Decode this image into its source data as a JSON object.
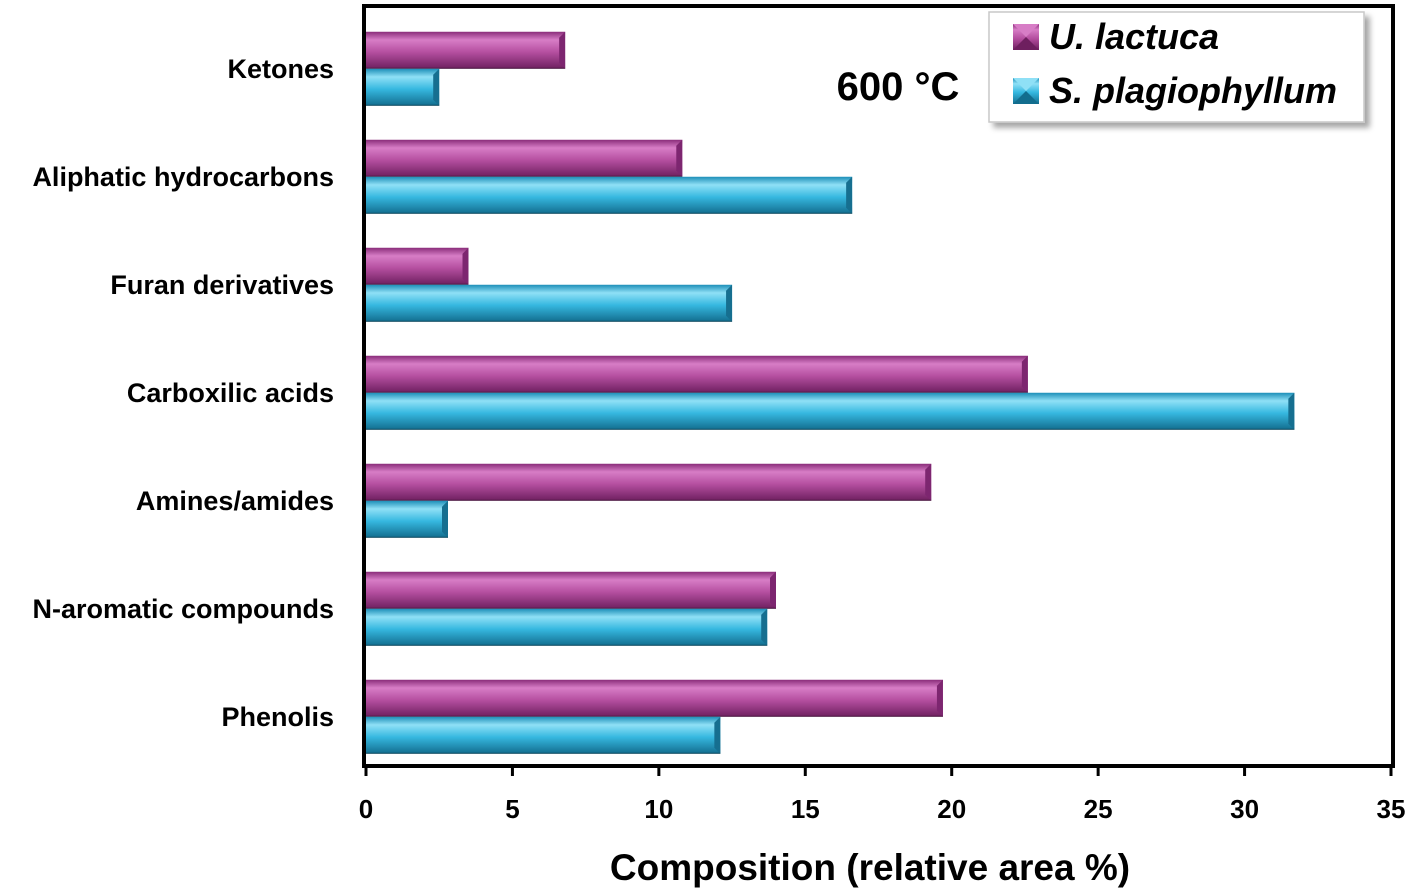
{
  "chart_data": {
    "type": "bar",
    "orientation": "horizontal",
    "title": "",
    "annotation": "600 °C",
    "categories": [
      "Ketones",
      "Aliphatic hydrocarbons",
      "Furan derivatives",
      "Carboxilic acids",
      "Amines/amides",
      "N-aromatic compounds",
      "Phenolis"
    ],
    "series": [
      {
        "name": "U. lactuca",
        "color": "#b54fa0",
        "values": [
          6.8,
          10.8,
          3.5,
          22.6,
          19.3,
          14.0,
          19.7
        ]
      },
      {
        "name": "S. plagiophyllum",
        "color": "#36b8e0",
        "values": [
          2.5,
          16.6,
          12.5,
          31.7,
          2.8,
          13.7,
          12.1
        ]
      }
    ],
    "xlabel": "Composition (relative area %)",
    "ylabel": "",
    "xlim": [
      0,
      35
    ],
    "xticks": [
      "0",
      "5",
      "10",
      "15",
      "20",
      "25",
      "30",
      "35"
    ],
    "grid": false,
    "legend_position": "top-right"
  }
}
